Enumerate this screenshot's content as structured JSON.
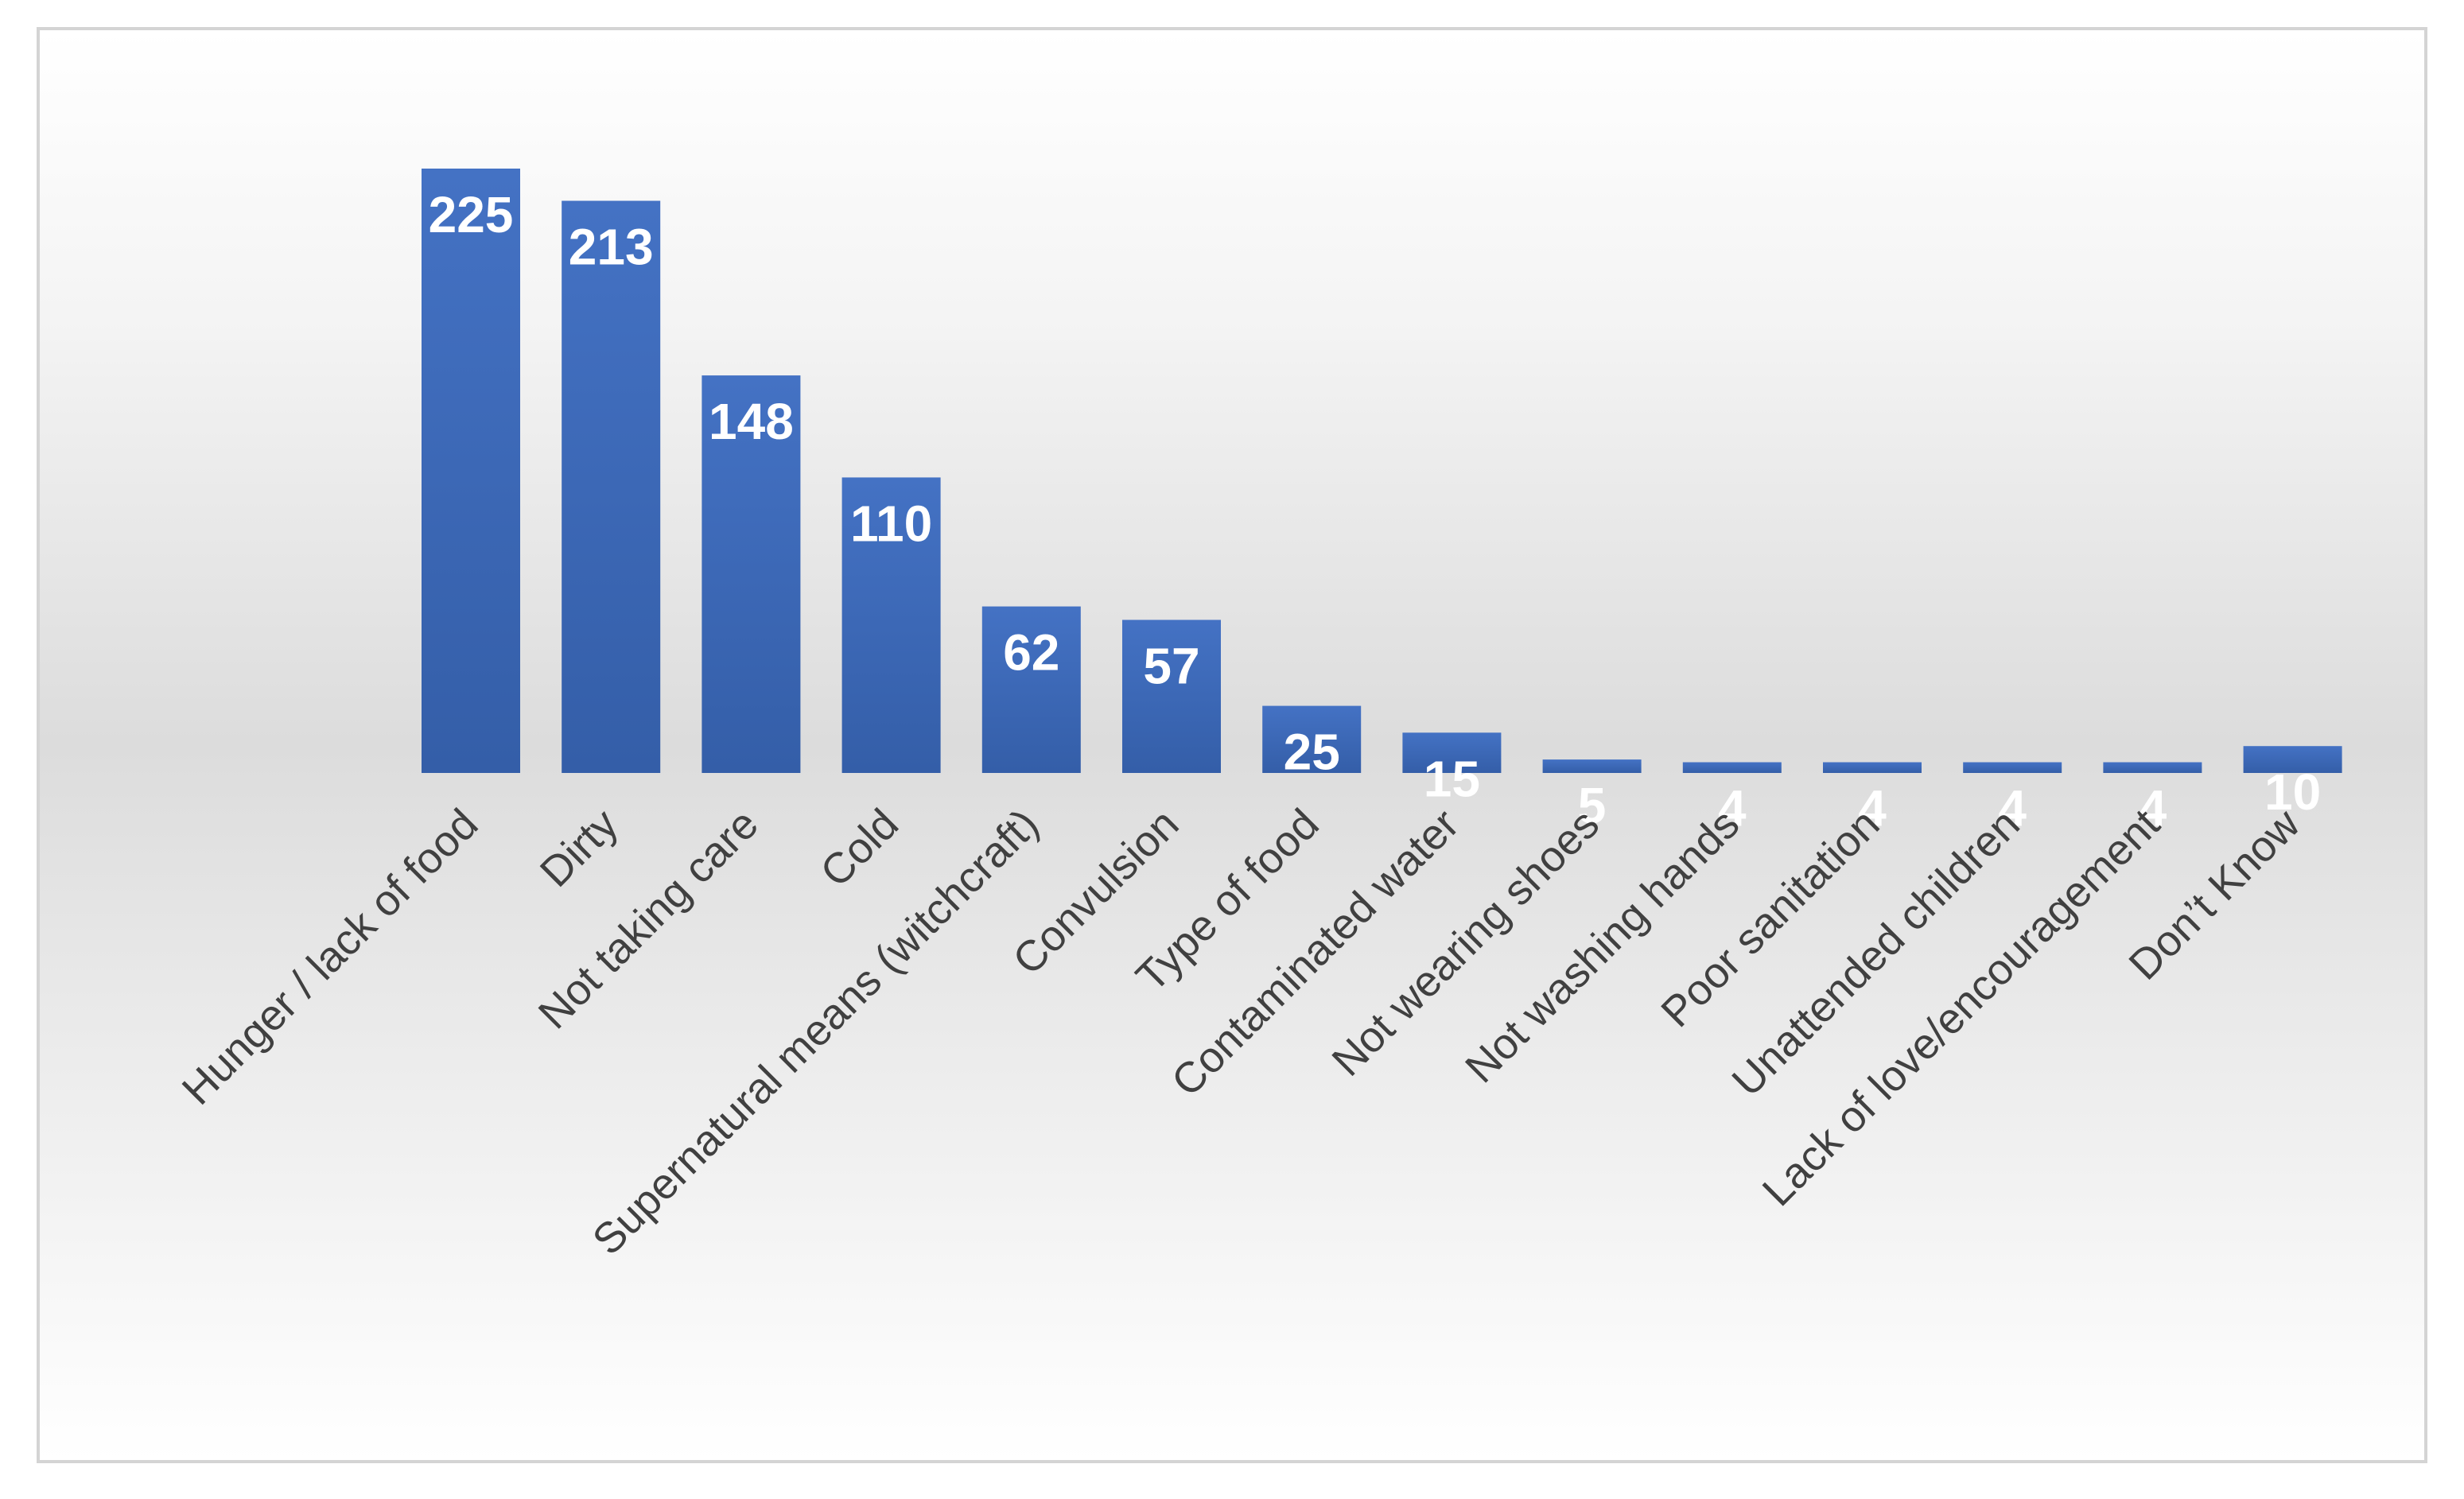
{
  "chart_data": {
    "type": "bar",
    "title": "",
    "xlabel": "",
    "ylabel": "",
    "ylim": [
      0,
      225
    ],
    "grid": false,
    "legend": "none",
    "bar_color": "#4472c4",
    "bar_color_dark": "#345ea8",
    "label_color": "#ffffff",
    "categories": [
      "Hunger / lack of food",
      "Dirty",
      "Not taking care",
      "Cold",
      "Supernatural means (witchcraft)",
      "Convulsion",
      "Type of food",
      "Contaminated water",
      "Not wearing shoes",
      "Not washing hands",
      "Poor sanitation",
      "Unattended children",
      "Lack of love/encouragement",
      "Don’t Know"
    ],
    "values": [
      225,
      213,
      148,
      110,
      62,
      57,
      25,
      15,
      5,
      4,
      4,
      4,
      4,
      10
    ]
  }
}
